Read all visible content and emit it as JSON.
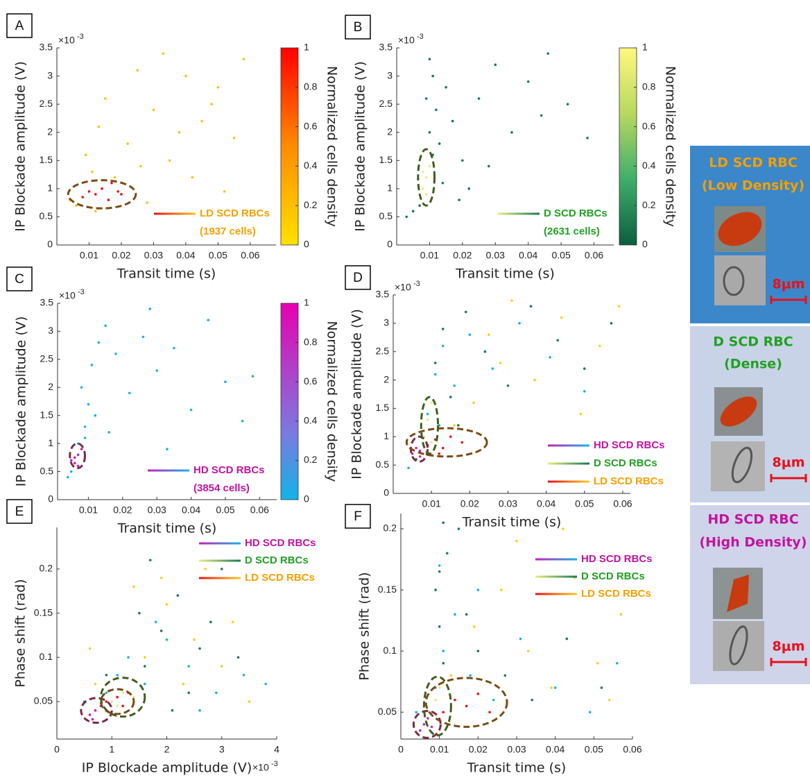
{
  "chart_data": [
    {
      "type": "scatter",
      "panel_label": "A",
      "xlabel": "Transit time (s)",
      "ylabel": "IP Blockade amplitude (V)",
      "y_multiplier": {
        "base": "×10",
        "exponent": "-3"
      },
      "xlim": [
        0,
        0.068
      ],
      "xticks": [
        0.01,
        0.02,
        0.03,
        0.04,
        0.05,
        0.06
      ],
      "ylim": [
        0,
        3.5
      ],
      "yticks": [
        0,
        0.5,
        1,
        1.5,
        2,
        2.5,
        3,
        3.5
      ],
      "colorbar": {
        "label": "Normalized cells density",
        "lim": [
          0,
          1
        ],
        "ticks": [
          0,
          0.2,
          0.4,
          0.6,
          0.8,
          1
        ],
        "colors": [
          "#ffe100",
          "#ff8c00",
          "#ff0000"
        ]
      },
      "series": [
        {
          "name": "LD SCD RBCs",
          "cells": "(1937 cells)",
          "color": "#ffbf10",
          "core_color": "#e81010",
          "label_color": "#f5a000",
          "region": {
            "cx": 0.014,
            "cy": 0.9,
            "rx": 0.0105,
            "ry": 0.25,
            "color": "#7a4a12"
          },
          "x": [
            0.008,
            0.01,
            0.012,
            0.014,
            0.016,
            0.011,
            0.009,
            0.013,
            0.018,
            0.02,
            0.006,
            0.015,
            0.022,
            0.025,
            0.03,
            0.035,
            0.04,
            0.045,
            0.05,
            0.055,
            0.058,
            0.012,
            0.017,
            0.028,
            0.033,
            0.042,
            0.048,
            0.052,
            0.026,
            0.038,
            0.004,
            0.019
          ],
          "y": [
            0.85,
            0.95,
            0.9,
            1.0,
            0.8,
            1.3,
            1.6,
            2.1,
            1.2,
            0.9,
            0.7,
            2.6,
            1.8,
            3.1,
            2.4,
            1.5,
            3.0,
            2.2,
            2.8,
            1.9,
            3.3,
            0.6,
            1.1,
            0.75,
            3.4,
            1.2,
            2.5,
            0.95,
            1.4,
            2.0,
            0.8,
            0.95
          ]
        }
      ]
    },
    {
      "type": "scatter",
      "panel_label": "B",
      "xlabel": "Transit time (s)",
      "ylabel": "IP Blockade amplitude (V)",
      "y_multiplier": {
        "base": "×10",
        "exponent": "-3"
      },
      "xlim": [
        0,
        0.066
      ],
      "xticks": [
        0.01,
        0.02,
        0.03,
        0.04,
        0.05,
        0.06
      ],
      "ylim": [
        0,
        3.5
      ],
      "yticks": [
        0,
        0.5,
        1,
        1.5,
        2,
        2.5,
        3,
        3.5
      ],
      "colorbar": {
        "label": "Normalized cells density",
        "lim": [
          0,
          1
        ],
        "ticks": [
          0,
          0.2,
          0.4,
          0.6,
          0.8,
          1
        ],
        "colors": [
          "#0b5e3e",
          "#3fae6a",
          "#b8d860",
          "#fff780"
        ]
      },
      "series": [
        {
          "name": "D SCD RBCs",
          "cells": "(2631 cells)",
          "color": "#157a4e",
          "core_color": "#e8ec80",
          "label_color": "#22a022",
          "region": {
            "cx": 0.009,
            "cy": 1.2,
            "rx": 0.0025,
            "ry": 0.5,
            "color": "#3f5e1b"
          },
          "x": [
            0.008,
            0.009,
            0.01,
            0.009,
            0.011,
            0.008,
            0.01,
            0.012,
            0.013,
            0.015,
            0.007,
            0.011,
            0.017,
            0.02,
            0.025,
            0.03,
            0.035,
            0.04,
            0.046,
            0.052,
            0.058,
            0.014,
            0.009,
            0.022,
            0.005,
            0.003,
            0.028,
            0.044,
            0.01,
            0.019
          ],
          "y": [
            1.0,
            1.2,
            1.4,
            0.9,
            1.6,
            1.3,
            2.0,
            2.4,
            1.8,
            2.8,
            0.7,
            3.0,
            2.2,
            1.5,
            2.6,
            3.2,
            2.0,
            2.9,
            3.4,
            2.5,
            1.9,
            1.1,
            2.6,
            1.0,
            0.6,
            0.5,
            1.4,
            2.3,
            3.3,
            0.8
          ]
        }
      ]
    },
    {
      "type": "scatter",
      "panel_label": "C",
      "xlabel": "Transit time (s)",
      "ylabel": "IP Blockade amplitude (V)",
      "y_multiplier": {
        "base": "×10",
        "exponent": "-3"
      },
      "xlim": [
        0.001,
        0.065
      ],
      "xticks": [
        0.01,
        0.02,
        0.03,
        0.04,
        0.05,
        0.06
      ],
      "ylim": [
        0,
        3.5
      ],
      "yticks": [
        0,
        0.5,
        1,
        1.5,
        2,
        2.5,
        3,
        3.5
      ],
      "colorbar": {
        "label": "Normalized cells density",
        "lim": [
          0,
          1
        ],
        "ticks": [
          0,
          0.2,
          0.4,
          0.6,
          0.8,
          1
        ],
        "colors": [
          "#12b4e8",
          "#7a7be0",
          "#b040c8",
          "#e600b0"
        ]
      },
      "series": [
        {
          "name": "HD SCD RBCs",
          "cells": "(3854 cells)",
          "color": "#16b2e6",
          "core_color": "#c81fbf",
          "label_color": "#c0149e",
          "region": {
            "cx": 0.0068,
            "cy": 0.78,
            "rx": 0.0022,
            "ry": 0.22,
            "color": "#7a2a4a"
          },
          "x": [
            0.005,
            0.006,
            0.007,
            0.006,
            0.008,
            0.007,
            0.005,
            0.009,
            0.01,
            0.008,
            0.011,
            0.012,
            0.004,
            0.013,
            0.015,
            0.018,
            0.022,
            0.026,
            0.03,
            0.035,
            0.04,
            0.045,
            0.05,
            0.055,
            0.058,
            0.009,
            0.007,
            0.016,
            0.028,
            0.033
          ],
          "y": [
            0.7,
            0.75,
            0.8,
            0.65,
            0.9,
            1.0,
            0.5,
            1.3,
            1.7,
            2.0,
            2.4,
            1.5,
            0.4,
            2.8,
            3.1,
            2.6,
            1.9,
            2.9,
            2.3,
            2.7,
            1.6,
            3.2,
            2.1,
            1.4,
            2.2,
            1.1,
            0.6,
            1.2,
            3.4,
            0.9
          ]
        }
      ]
    },
    {
      "type": "scatter",
      "panel_label": "D",
      "xlabel": "Transit time (s)",
      "ylabel": "IP Blockade amplitude (V)",
      "y_multiplier": {
        "base": "×10",
        "exponent": "-3"
      },
      "xlim": [
        0,
        0.062
      ],
      "xticks": [
        0.01,
        0.02,
        0.03,
        0.04,
        0.05,
        0.06
      ],
      "ylim": [
        0,
        3.5
      ],
      "yticks": [
        0,
        0.5,
        1,
        1.5,
        2,
        2.5,
        3,
        3.5
      ],
      "series": [
        {
          "name": "HD SCD RBCs",
          "color": "#16b2e6",
          "core_color": "#c81fbf",
          "label_color": "#c0149e",
          "region": {
            "cx": 0.0068,
            "cy": 0.78,
            "rx": 0.0022,
            "ry": 0.22,
            "color": "#7a2a4a"
          },
          "x": [
            0.005,
            0.006,
            0.007,
            0.008,
            0.009,
            0.011,
            0.013,
            0.016,
            0.02,
            0.026,
            0.033,
            0.041,
            0.05,
            0.004,
            0.007,
            0.012
          ],
          "y": [
            0.7,
            0.8,
            0.65,
            1.0,
            1.4,
            2.1,
            2.6,
            1.9,
            2.8,
            2.2,
            3.0,
            2.4,
            1.8,
            0.45,
            0.75,
            1.2
          ]
        },
        {
          "name": "D SCD RBCs",
          "color": "#157a4e",
          "core_color": "#e8ec80",
          "label_color": "#22a022",
          "region": {
            "cx": 0.0095,
            "cy": 1.2,
            "rx": 0.0022,
            "ry": 0.5,
            "color": "#3f5e1b"
          },
          "x": [
            0.008,
            0.009,
            0.01,
            0.011,
            0.013,
            0.015,
            0.019,
            0.024,
            0.03,
            0.036,
            0.043,
            0.05,
            0.057,
            0.006,
            0.01,
            0.017
          ],
          "y": [
            1.0,
            1.3,
            1.6,
            2.3,
            2.9,
            1.7,
            3.2,
            2.5,
            1.9,
            3.3,
            2.7,
            2.2,
            3.0,
            0.6,
            0.9,
            1.2
          ]
        },
        {
          "name": "LD SCD RBCs",
          "color": "#ffcc20",
          "core_color": "#e81010",
          "label_color": "#f5a000",
          "region": {
            "cx": 0.014,
            "cy": 0.9,
            "rx": 0.0105,
            "ry": 0.25,
            "color": "#7a4a12"
          },
          "x": [
            0.009,
            0.011,
            0.013,
            0.015,
            0.018,
            0.021,
            0.025,
            0.031,
            0.037,
            0.044,
            0.049,
            0.054,
            0.059,
            0.012,
            0.016,
            0.028
          ],
          "y": [
            0.85,
            0.95,
            0.8,
            1.0,
            0.9,
            1.6,
            2.8,
            3.4,
            2.0,
            3.1,
            1.4,
            2.6,
            3.3,
            0.7,
            1.2,
            2.3
          ]
        }
      ]
    },
    {
      "type": "scatter",
      "panel_label": "E",
      "xlabel": "IP Blockade amplitude (V)",
      "ylabel": "Phase shift (rad)",
      "x_multiplier": {
        "base": "×10",
        "exponent": "-3"
      },
      "xlim": [
        0,
        4
      ],
      "xticks": [
        0,
        1,
        2,
        3,
        4
      ],
      "ylim": [
        0.0076,
        0.247
      ],
      "yticks": [
        0.05,
        0.1,
        0.15,
        0.2
      ],
      "series": [
        {
          "name": "HD SCD RBCs",
          "color": "#16b2e6",
          "core_color": "#c81fbf",
          "label_color": "#c0149e",
          "region": {
            "cx": 0.72,
            "cy": 0.04,
            "rx": 0.28,
            "ry": 0.014,
            "color": "#7a2a4a"
          },
          "x": [
            0.6,
            0.7,
            0.8,
            0.65,
            0.9,
            1.1,
            1.3,
            1.6,
            2.0,
            2.4,
            2.9,
            3.4,
            0.5,
            1.8,
            2.6,
            3.8
          ],
          "y": [
            0.035,
            0.04,
            0.045,
            0.03,
            0.06,
            0.08,
            0.1,
            0.07,
            0.12,
            0.09,
            0.06,
            0.08,
            0.05,
            0.14,
            0.04,
            0.07
          ]
        },
        {
          "name": "D SCD RBCs",
          "color": "#157a4e",
          "core_color": "#e8ec80",
          "label_color": "#22a022",
          "region": {
            "cx": 1.2,
            "cy": 0.055,
            "rx": 0.4,
            "ry": 0.022,
            "color": "#3f5e1b"
          },
          "x": [
            1.0,
            1.2,
            1.4,
            1.1,
            1.6,
            1.9,
            2.2,
            2.6,
            3.0,
            0.9,
            1.5,
            2.4,
            2.8,
            3.3,
            1.7,
            2.1
          ],
          "y": [
            0.05,
            0.06,
            0.055,
            0.045,
            0.09,
            0.13,
            0.17,
            0.11,
            0.2,
            0.08,
            0.15,
            0.06,
            0.14,
            0.1,
            0.21,
            0.04
          ]
        },
        {
          "name": "LD SCD RBCs",
          "color": "#ffcc20",
          "core_color": "#e81010",
          "label_color": "#f5a000",
          "region": {
            "cx": 1.1,
            "cy": 0.05,
            "rx": 0.3,
            "ry": 0.014,
            "color": "#7a4a12"
          },
          "x": [
            0.9,
            1.1,
            1.2,
            1.3,
            0.7,
            1.6,
            2.0,
            2.5,
            3.0,
            3.5,
            1.9,
            2.7,
            3.2,
            0.6,
            1.4,
            2.3
          ],
          "y": [
            0.05,
            0.055,
            0.045,
            0.06,
            0.07,
            0.1,
            0.16,
            0.12,
            0.09,
            0.05,
            0.19,
            0.2,
            0.14,
            0.11,
            0.18,
            0.07
          ]
        }
      ]
    },
    {
      "type": "scatter",
      "panel_label": "F",
      "xlabel": "Transit time (s)",
      "ylabel": "Phase shift (rad)",
      "xlim": [
        0,
        0.06
      ],
      "xticks": [
        0,
        0.01,
        0.02,
        0.03,
        0.04,
        0.05,
        0.06
      ],
      "ylim": [
        0.028,
        0.2125
      ],
      "yticks": [
        0.05,
        0.1,
        0.15,
        0.2
      ],
      "series": [
        {
          "name": "HD SCD RBCs",
          "color": "#16b2e6",
          "core_color": "#c81fbf",
          "label_color": "#c0149e",
          "region": {
            "cx": 0.0068,
            "cy": 0.04,
            "rx": 0.0035,
            "ry": 0.011,
            "color": "#7a2a4a"
          },
          "x": [
            0.005,
            0.006,
            0.007,
            0.008,
            0.004,
            0.009,
            0.011,
            0.014,
            0.018,
            0.024,
            0.031,
            0.04,
            0.049,
            0.056,
            0.01,
            0.02
          ],
          "y": [
            0.035,
            0.04,
            0.045,
            0.038,
            0.05,
            0.07,
            0.1,
            0.13,
            0.08,
            0.06,
            0.11,
            0.07,
            0.05,
            0.09,
            0.17,
            0.15
          ]
        },
        {
          "name": "D SCD RBCs",
          "color": "#157a4e",
          "core_color": "#e8ec80",
          "label_color": "#22a022",
          "region": {
            "cx": 0.0095,
            "cy": 0.055,
            "rx": 0.0035,
            "ry": 0.024,
            "color": "#3f5e1b"
          },
          "x": [
            0.008,
            0.009,
            0.01,
            0.011,
            0.01,
            0.009,
            0.012,
            0.015,
            0.02,
            0.027,
            0.034,
            0.043,
            0.052,
            0.011,
            0.01,
            0.017
          ],
          "y": [
            0.05,
            0.06,
            0.07,
            0.09,
            0.12,
            0.15,
            0.18,
            0.2,
            0.1,
            0.08,
            0.06,
            0.11,
            0.07,
            0.205,
            0.165,
            0.13
          ]
        },
        {
          "name": "LD SCD RBCs",
          "color": "#ffcc20",
          "core_color": "#e81010",
          "label_color": "#f5a000",
          "region": {
            "cx": 0.017,
            "cy": 0.058,
            "rx": 0.0105,
            "ry": 0.02,
            "color": "#7a4a12"
          },
          "x": [
            0.011,
            0.014,
            0.017,
            0.02,
            0.023,
            0.013,
            0.019,
            0.026,
            0.033,
            0.039,
            0.045,
            0.051,
            0.057,
            0.03,
            0.042,
            0.054
          ],
          "y": [
            0.05,
            0.06,
            0.055,
            0.065,
            0.05,
            0.08,
            0.12,
            0.15,
            0.1,
            0.07,
            0.16,
            0.09,
            0.13,
            0.19,
            0.2,
            0.06
          ]
        }
      ]
    }
  ],
  "cell_panels": [
    {
      "title": "LD SCD RBC",
      "subtitle": "(Low Density)",
      "scale_label": "8μm"
    },
    {
      "title": "D SCD RBC",
      "subtitle": "(Dense)",
      "scale_label": "8μm"
    },
    {
      "title": "HD SCD RBC",
      "subtitle": "(High Density)",
      "scale_label": "8μm"
    }
  ]
}
